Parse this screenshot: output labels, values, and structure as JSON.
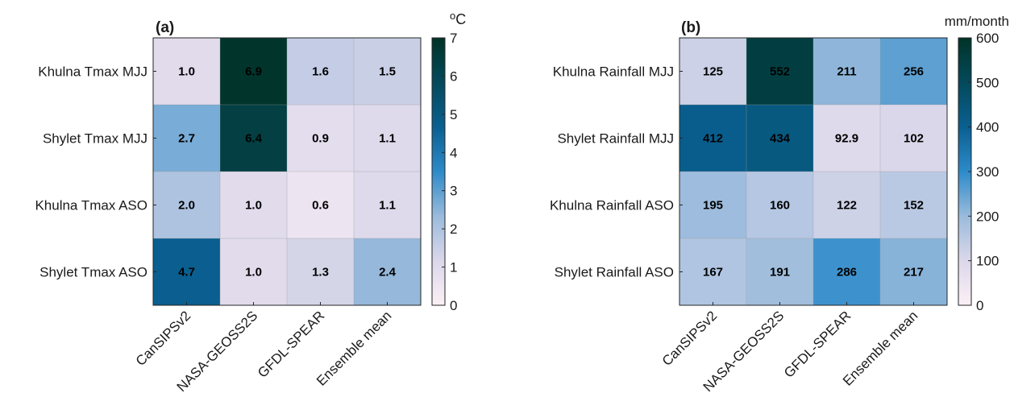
{
  "chart_data": [
    {
      "type": "heatmap",
      "panel_label": "(a)",
      "colorbar_unit": "oC",
      "colorbar_ticks": [
        0,
        1,
        2,
        3,
        4,
        5,
        6,
        7
      ],
      "vmin": 0,
      "vmax": 7,
      "rows": [
        "Khulna Tmax MJJ",
        "Shylet Tmax MJJ",
        "Khulna Tmax ASO",
        "Shylet Tmax ASO"
      ],
      "columns": [
        "CanSIPSv2",
        "NASA-GEOSS2S",
        "GFDL-SPEAR",
        "Ensemble mean"
      ],
      "values": [
        [
          1.0,
          6.9,
          1.6,
          1.5
        ],
        [
          2.7,
          6.4,
          0.9,
          1.1
        ],
        [
          2.0,
          1.0,
          0.6,
          1.1
        ],
        [
          4.7,
          1.0,
          1.3,
          2.4
        ]
      ],
      "labels": [
        [
          "1.0",
          "6.9",
          "1.6",
          "1.5"
        ],
        [
          "2.7",
          "6.4",
          "0.9",
          "1.1"
        ],
        [
          "2.0",
          "1.0",
          "0.6",
          "1.1"
        ],
        [
          "4.7",
          "1.0",
          "1.3",
          "2.4"
        ]
      ],
      "grid": true
    },
    {
      "type": "heatmap",
      "panel_label": "(b)",
      "colorbar_unit": "mm/month",
      "colorbar_ticks": [
        0,
        100,
        200,
        300,
        400,
        500,
        600
      ],
      "vmin": 0,
      "vmax": 600,
      "rows": [
        "Khulna Rainfall MJJ",
        "Shylet Rainfall MJJ",
        "Khulna Rainfall ASO",
        "Shylet Rainfall ASO"
      ],
      "columns": [
        "CanSIPSv2",
        "NASA-GEOSS2S",
        "GFDL-SPEAR",
        "Ensemble mean"
      ],
      "values": [
        [
          125,
          552,
          211,
          256
        ],
        [
          412,
          434,
          92.9,
          102
        ],
        [
          195,
          160,
          122,
          152
        ],
        [
          167,
          191,
          286,
          217
        ]
      ],
      "labels": [
        [
          "125",
          "552",
          "211",
          "256"
        ],
        [
          "412",
          "434",
          "92.9",
          "102"
        ],
        [
          "195",
          "160",
          "122",
          "152"
        ],
        [
          "167",
          "191",
          "286",
          "217"
        ]
      ],
      "grid": true
    }
  ],
  "colormap": {
    "stops": [
      "#fcf0f6",
      "#dcd8ea",
      "#9bbbdc",
      "#2e8bca",
      "#0a6092",
      "#044a5c",
      "#013328"
    ]
  }
}
